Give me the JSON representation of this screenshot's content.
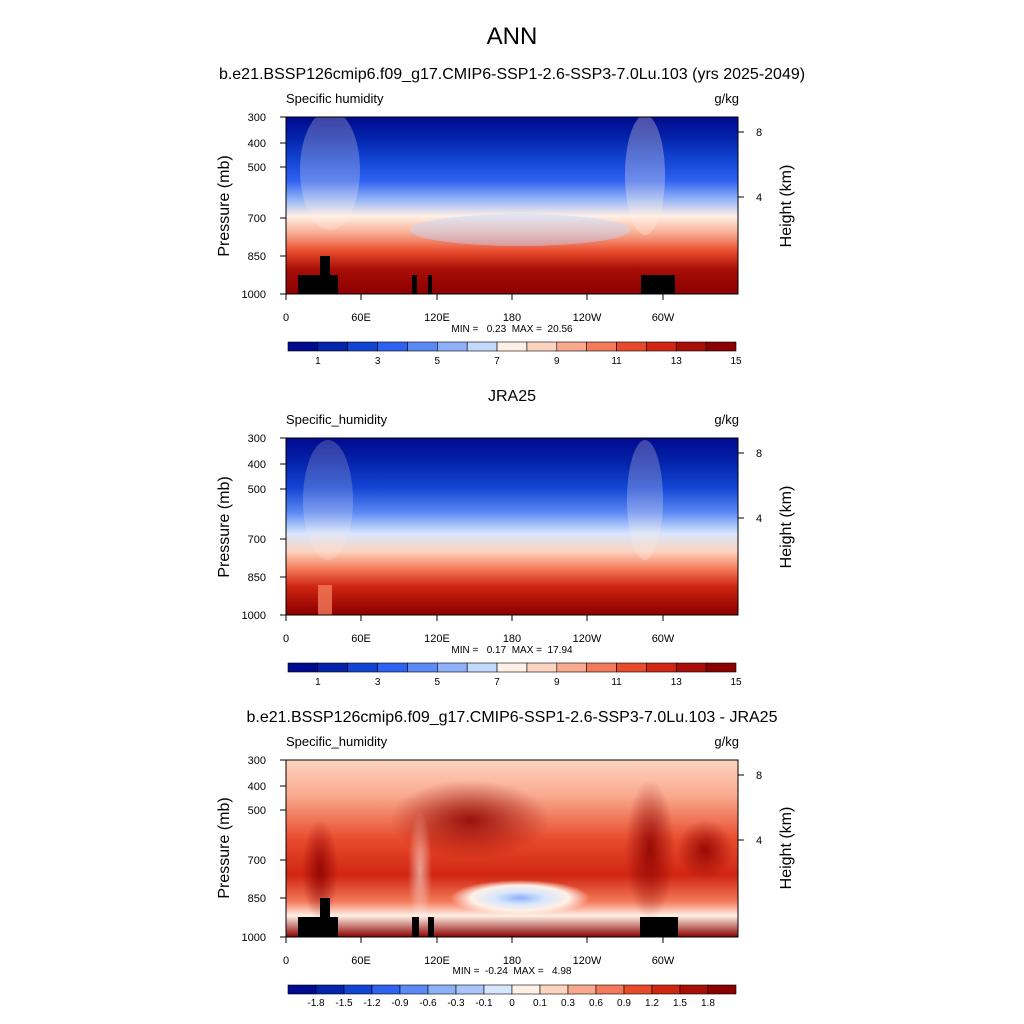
{
  "figure": {
    "title": "ANN",
    "background": "#ffffff"
  },
  "chart_data": [
    {
      "type": "heatmap",
      "panel_title": "b.e21.BSSP126cmip6.f09_g17.CMIP6-SSP1-2.6-SSP3-7.0Lu.103 (yrs 2025-2049)",
      "left_label": "Specific humidity",
      "units": "g/kg",
      "ylabel": "Pressure (mb)",
      "y2label": "Height (km)",
      "x_ticks": [
        "0",
        "60E",
        "120E",
        "180",
        "120W",
        "60W"
      ],
      "y_ticks": [
        "300",
        "400",
        "500",
        "700",
        "850",
        "1000"
      ],
      "y2_ticks": [
        "8",
        "4"
      ],
      "stats": "MIN =   0.23  MAX =  20.56",
      "min": 0.23,
      "max": 20.56,
      "colorbar": {
        "labels": [
          "1",
          "3",
          "5",
          "7",
          "9",
          "11",
          "13",
          "15"
        ],
        "colors": [
          "#000a8f",
          "#0424ac",
          "#1244d4",
          "#2f62f0",
          "#5c8af4",
          "#8eb0f8",
          "#c2d8fc",
          "#fff0e6",
          "#fdd4c0",
          "#f9aa8e",
          "#f37a5a",
          "#e84a2c",
          "#d02612",
          "#a80e06",
          "#8b0000"
        ]
      },
      "show_topography": true
    },
    {
      "type": "heatmap",
      "panel_title": "JRA25",
      "left_label": "Specific_humidity",
      "units": "g/kg",
      "ylabel": "Pressure (mb)",
      "y2label": "Height (km)",
      "x_ticks": [
        "0",
        "60E",
        "120E",
        "180",
        "120W",
        "60W"
      ],
      "y_ticks": [
        "300",
        "400",
        "500",
        "700",
        "850",
        "1000"
      ],
      "y2_ticks": [
        "8",
        "4"
      ],
      "stats": "MIN =   0.17  MAX =  17.94",
      "min": 0.17,
      "max": 17.94,
      "colorbar": {
        "labels": [
          "1",
          "3",
          "5",
          "7",
          "9",
          "11",
          "13",
          "15"
        ],
        "colors": [
          "#000a8f",
          "#0424ac",
          "#1244d4",
          "#2f62f0",
          "#5c8af4",
          "#8eb0f8",
          "#c2d8fc",
          "#fff0e6",
          "#fdd4c0",
          "#f9aa8e",
          "#f37a5a",
          "#e84a2c",
          "#d02612",
          "#a80e06",
          "#8b0000"
        ]
      },
      "show_topography": false
    },
    {
      "type": "heatmap",
      "panel_title": "b.e21.BSSP126cmip6.f09_g17.CMIP6-SSP1-2.6-SSP3-7.0Lu.103 - JRA25",
      "left_label": "Specific_humidity",
      "units": "g/kg",
      "ylabel": "Pressure (mb)",
      "y2label": "Height (km)",
      "x_ticks": [
        "0",
        "60E",
        "120E",
        "180",
        "120W",
        "60W"
      ],
      "y_ticks": [
        "300",
        "400",
        "500",
        "700",
        "850",
        "1000"
      ],
      "y2_ticks": [
        "8",
        "4"
      ],
      "stats": "MIN =  -0.24  MAX =   4.98",
      "min": -0.24,
      "max": 4.98,
      "colorbar": {
        "labels": [
          "-1.8",
          "-1.5",
          "-1.2",
          "-0.9",
          "-0.6",
          "-0.3",
          "-0.1",
          "0",
          "0.1",
          "0.3",
          "0.6",
          "0.9",
          "1.2",
          "1.5",
          "1.8"
        ],
        "colors": [
          "#000a8f",
          "#0424ac",
          "#1244d4",
          "#2f62f0",
          "#5c8af4",
          "#8eb0f8",
          "#a9c4fa",
          "#d6e6fd",
          "#fff0e6",
          "#fdd4c0",
          "#f9aa8e",
          "#f37a5a",
          "#e84a2c",
          "#d02612",
          "#a80e06",
          "#8b0000"
        ]
      },
      "show_topography": true
    }
  ]
}
